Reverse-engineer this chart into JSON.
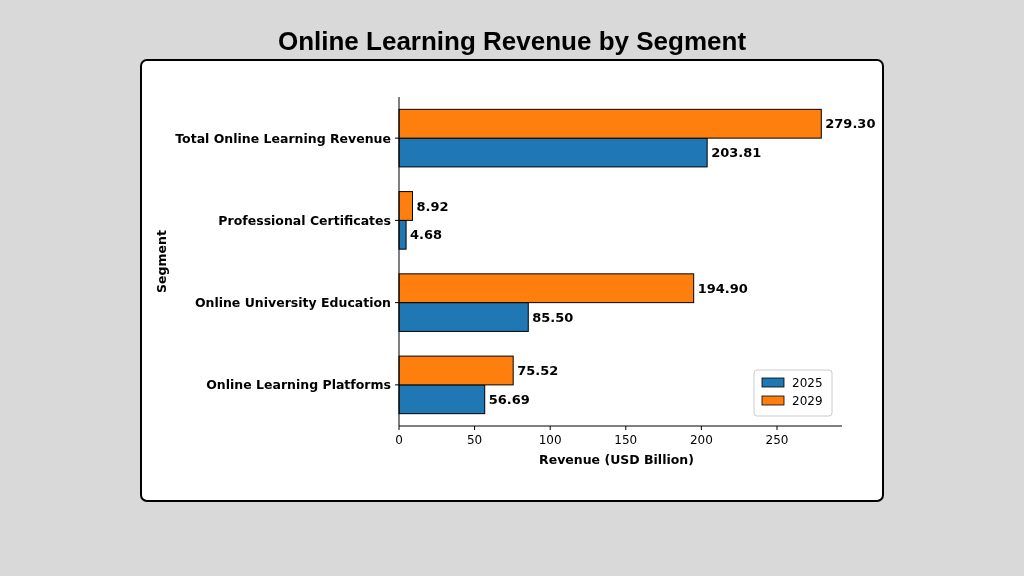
{
  "chart_data": {
    "type": "bar",
    "orientation": "horizontal",
    "title": "Online Learning Revenue by Segment",
    "xlabel": "Revenue (USD Billion)",
    "ylabel": "Segment",
    "categories": [
      "Total Online Learning Revenue",
      "Professional Certificates",
      "Online University Education",
      "Online Learning Platforms"
    ],
    "series": [
      {
        "name": "2025",
        "color": "#1f77b4",
        "values": [
          203.81,
          4.68,
          85.5,
          56.69
        ],
        "value_labels": [
          "203.81",
          "4.68",
          "85.50",
          "56.69"
        ]
      },
      {
        "name": "2029",
        "color": "#ff7f0e",
        "values": [
          279.3,
          8.92,
          194.9,
          75.52
        ],
        "value_labels": [
          "279.30",
          "8.92",
          "194.90",
          "75.52"
        ]
      }
    ],
    "xlim": [
      0,
      293
    ],
    "xticks": [
      0,
      50,
      100,
      150,
      200,
      250
    ],
    "grid": false,
    "legend": "bottom right"
  }
}
